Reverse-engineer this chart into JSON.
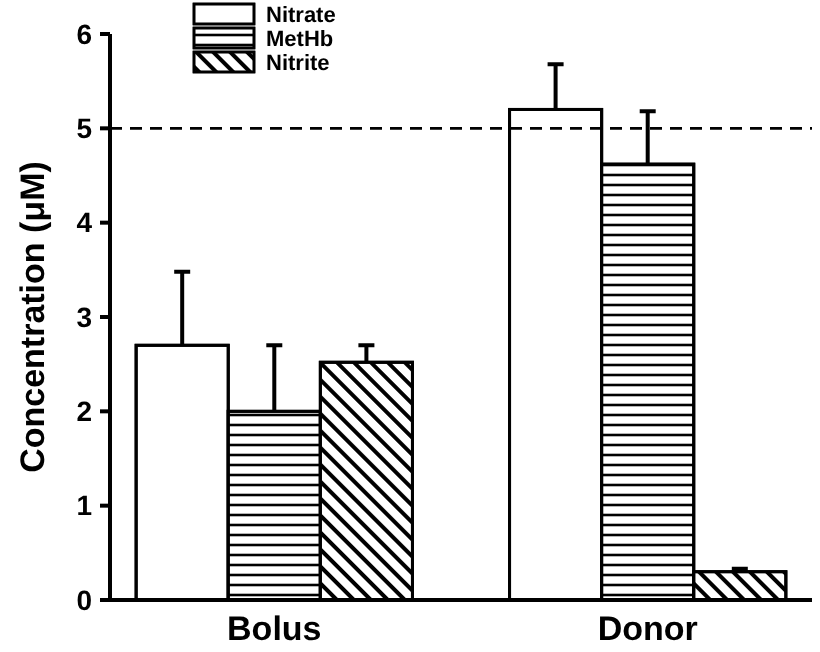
{
  "chart_data": {
    "type": "bar",
    "ylabel": "Concentration (μM)",
    "categories": [
      "Bolus",
      "Donor"
    ],
    "series": [
      {
        "name": "Nitrate",
        "color": "#ffffff",
        "values": [
          2.7,
          5.2
        ],
        "errors": [
          [
            2.7,
            3.48
          ],
          [
            5.2,
            5.68
          ]
        ]
      },
      {
        "name": "MetHb",
        "color": "#ffffff",
        "values": [
          2.0,
          4.62
        ],
        "errors": [
          [
            2.0,
            2.7
          ],
          [
            4.62,
            5.18
          ]
        ]
      },
      {
        "name": "Nitrite",
        "color": "#ffffff",
        "values": [
          2.52,
          0.3
        ],
        "errors": [
          [
            2.52,
            2.7
          ],
          [
            0.3,
            0.33
          ]
        ]
      }
    ],
    "ylim": [
      0,
      6
    ],
    "yticks": [
      0,
      1,
      2,
      3,
      4,
      5,
      6
    ],
    "ref_lines": [
      {
        "axis": "y",
        "value": 5,
        "color": "#000000",
        "line_style": "dashed"
      }
    ],
    "legend": "top left",
    "grid": false
  }
}
